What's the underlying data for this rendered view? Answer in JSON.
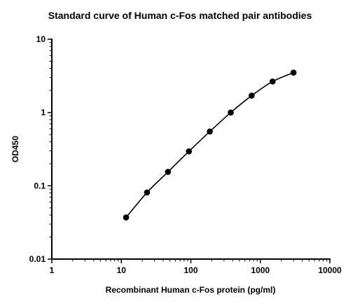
{
  "chart_data": {
    "type": "scatter",
    "title": "Standard curve of Human c-Fos matched pair antibodies",
    "xlabel": "Recombinant Human c-Fos protein (pg/ml)",
    "ylabel": "OD450",
    "xscale": "log",
    "yscale": "log",
    "xlim": [
      1,
      10000
    ],
    "ylim": [
      0.01,
      10
    ],
    "xticks": [
      "1",
      "10",
      "100",
      "1000",
      "10000"
    ],
    "yticks": [
      "0.01",
      "0.1",
      "1",
      "10"
    ],
    "grid": false,
    "series": [
      {
        "x": [
          11.7,
          23.4,
          46.9,
          93.8,
          187.5,
          375,
          750,
          1500,
          3000
        ],
        "y": [
          0.037,
          0.081,
          0.155,
          0.295,
          0.55,
          1.0,
          1.7,
          2.65,
          3.5
        ],
        "fit_curve": true
      }
    ]
  }
}
